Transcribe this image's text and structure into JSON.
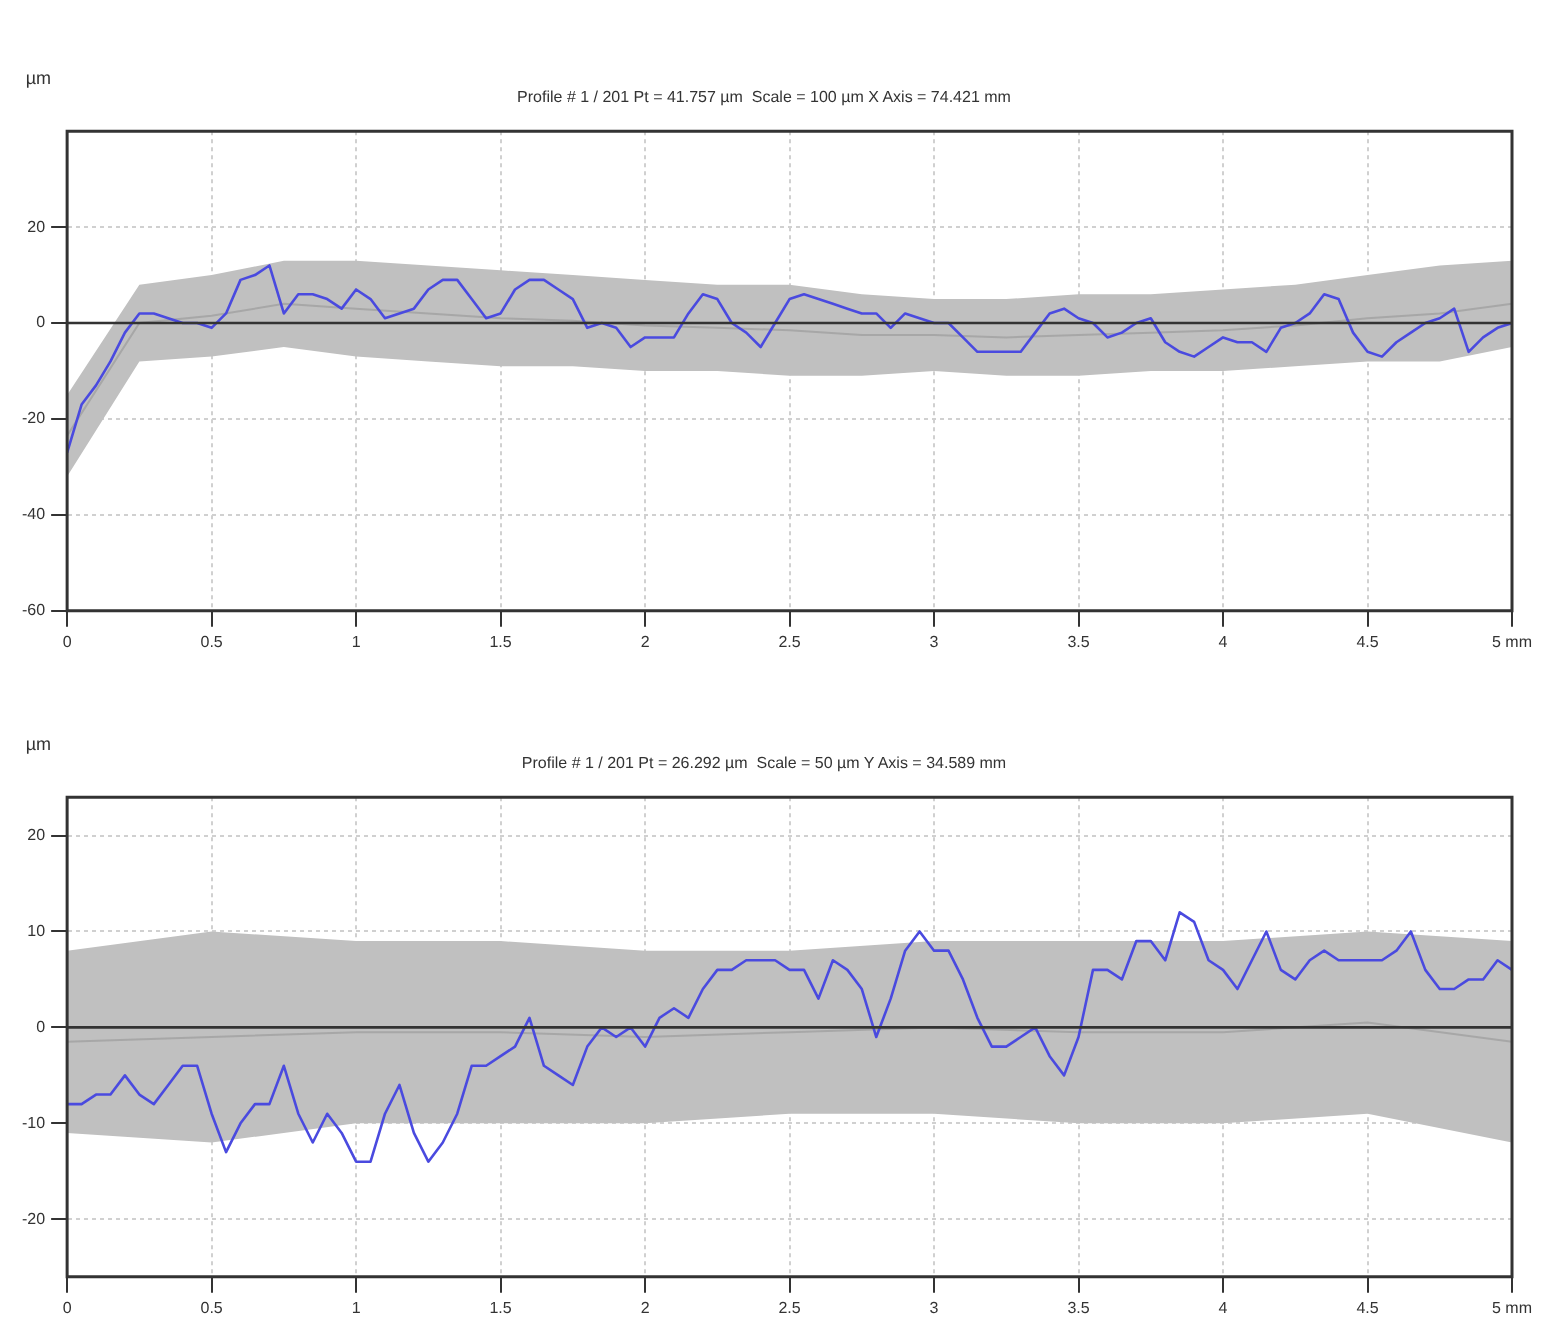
{
  "chart_data": [
    {
      "type": "line",
      "subtitle": "Profile # 1 / 201 Pt = 41.757 µm  Scale = 100 µm X Axis = 74.421 mm",
      "ylabel": "µm",
      "xlim": [
        0,
        5
      ],
      "ylim": [
        -60,
        40
      ],
      "xticks": [
        0,
        0.5,
        1,
        1.5,
        2,
        2.5,
        3,
        3.5,
        4,
        4.5,
        {
          "value": 5,
          "label": "5 mm"
        }
      ],
      "yticks": [
        -60,
        -40,
        -20,
        0,
        20
      ],
      "grid": true,
      "marker": "none",
      "line_style": "solid",
      "ref_lines": [
        {
          "axis": "y",
          "value": 0,
          "color": "#333333"
        }
      ],
      "series": [
        {
          "type": "line",
          "color": "#c0c0c0",
          "x": [
            0,
            0.25,
            0.5,
            0.75,
            1,
            1.25,
            1.5,
            1.75,
            2,
            2.25,
            2.5,
            2.75,
            3,
            3.25,
            3.5,
            3.75,
            4,
            4.25,
            4.5,
            4.75,
            5
          ],
          "values": [
            -23.5,
            0,
            1.5,
            4,
            3,
            2,
            1,
            0.5,
            -0.5,
            -1,
            -1.5,
            -2.5,
            -2.5,
            -3,
            -2.5,
            -2,
            -1.5,
            -0.5,
            1,
            2,
            4
          ],
          "lower": [
            -32,
            -8,
            -7,
            -5,
            -7,
            -8,
            -9,
            -9,
            -10,
            -10,
            -11,
            -11,
            -10,
            -11,
            -11,
            -10,
            -10,
            -9,
            -8,
            -8,
            -5
          ],
          "upper": [
            -15,
            8,
            10,
            13,
            13,
            12,
            11,
            10,
            9,
            8,
            8,
            6,
            5,
            5,
            6,
            6,
            7,
            8,
            10,
            12,
            13
          ]
        },
        {
          "color": "#4a4adf",
          "x": [
            0,
            0.05,
            0.1,
            0.15,
            0.2,
            0.25,
            0.3,
            0.35,
            0.4,
            0.45,
            0.5,
            0.55,
            0.6,
            0.65,
            0.7,
            0.75,
            0.8,
            0.85,
            0.9,
            0.95,
            1,
            1.05,
            1.1,
            1.15,
            1.2,
            1.25,
            1.3,
            1.35,
            1.4,
            1.45,
            1.5,
            1.55,
            1.6,
            1.65,
            1.7,
            1.75,
            1.8,
            1.85,
            1.9,
            1.95,
            2,
            2.05,
            2.1,
            2.15,
            2.2,
            2.25,
            2.3,
            2.35,
            2.4,
            2.45,
            2.5,
            2.55,
            2.6,
            2.65,
            2.7,
            2.75,
            2.8,
            2.85,
            2.9,
            2.95,
            3,
            3.05,
            3.1,
            3.15,
            3.2,
            3.25,
            3.3,
            3.35,
            3.4,
            3.45,
            3.5,
            3.55,
            3.6,
            3.65,
            3.7,
            3.75,
            3.8,
            3.85,
            3.9,
            3.95,
            4,
            4.05,
            4.1,
            4.15,
            4.2,
            4.25,
            4.3,
            4.35,
            4.4,
            4.45,
            4.5,
            4.55,
            4.6,
            4.65,
            4.7,
            4.75,
            4.8,
            4.85,
            4.9,
            4.95,
            5
          ],
          "values": [
            -27,
            -17,
            -13,
            -8,
            -2,
            2,
            2,
            1,
            0,
            0,
            -1,
            2,
            9,
            10,
            12,
            2,
            6,
            6,
            5,
            3,
            7,
            5,
            1,
            2,
            3,
            7,
            9,
            9,
            5,
            1,
            2,
            7,
            9,
            9,
            7,
            5,
            -1,
            0,
            -1,
            -5,
            -3,
            -3,
            -3,
            2,
            6,
            5,
            0,
            -2,
            -5,
            0,
            5,
            6,
            5,
            4,
            3,
            2,
            2,
            -1,
            2,
            1,
            0,
            0,
            -3,
            -6,
            -6,
            -6,
            -6,
            -2,
            2,
            3,
            1,
            0,
            -3,
            -2,
            0,
            1,
            -4,
            -6,
            -7,
            -5,
            -3,
            -4,
            -4,
            -6,
            -1,
            0,
            2,
            6,
            5,
            -2,
            -6,
            -7,
            -4,
            -2,
            0,
            1,
            3,
            -6,
            -3,
            -1,
            0
          ]
        }
      ]
    },
    {
      "type": "line",
      "subtitle": "Profile # 1 / 201 Pt = 26.292 µm  Scale = 50 µm Y Axis = 34.589 mm",
      "ylabel": "µm",
      "xlim": [
        0,
        5
      ],
      "ylim": [
        -26,
        24
      ],
      "xticks": [
        0,
        0.5,
        1,
        1.5,
        2,
        2.5,
        3,
        3.5,
        4,
        4.5,
        {
          "value": 5,
          "label": "5 mm"
        }
      ],
      "yticks": [
        -20,
        -10,
        0,
        10,
        20
      ],
      "grid": true,
      "marker": "none",
      "line_style": "solid",
      "ref_lines": [
        {
          "axis": "y",
          "value": 0,
          "color": "#333333"
        }
      ],
      "series": [
        {
          "type": "line",
          "color": "#c0c0c0",
          "x": [
            0,
            0.5,
            1,
            1.5,
            2,
            2.5,
            3,
            3.5,
            4,
            4.5,
            5
          ],
          "values": [
            -1.5,
            -1,
            -0.5,
            -0.5,
            -1,
            -0.5,
            0,
            -0.5,
            -0.5,
            0.5,
            -1.5
          ],
          "lower": [
            -11,
            -12,
            -10,
            -10,
            -10,
            -9,
            -9,
            -10,
            -10,
            -9,
            -12
          ],
          "upper": [
            8,
            10,
            9,
            9,
            8,
            8,
            9,
            9,
            9,
            10,
            9
          ]
        },
        {
          "color": "#4a4adf",
          "x": [
            0,
            0.05,
            0.1,
            0.15,
            0.2,
            0.25,
            0.3,
            0.35,
            0.4,
            0.45,
            0.5,
            0.55,
            0.6,
            0.65,
            0.7,
            0.75,
            0.8,
            0.85,
            0.9,
            0.95,
            1,
            1.05,
            1.1,
            1.15,
            1.2,
            1.25,
            1.3,
            1.35,
            1.4,
            1.45,
            1.5,
            1.55,
            1.6,
            1.65,
            1.7,
            1.75,
            1.8,
            1.85,
            1.9,
            1.95,
            2,
            2.05,
            2.1,
            2.15,
            2.2,
            2.25,
            2.3,
            2.35,
            2.4,
            2.45,
            2.5,
            2.55,
            2.6,
            2.65,
            2.7,
            2.75,
            2.8,
            2.85,
            2.9,
            2.95,
            3,
            3.05,
            3.1,
            3.15,
            3.2,
            3.25,
            3.3,
            3.35,
            3.4,
            3.45,
            3.5,
            3.55,
            3.6,
            3.65,
            3.7,
            3.75,
            3.8,
            3.85,
            3.9,
            3.95,
            4,
            4.05,
            4.1,
            4.15,
            4.2,
            4.25,
            4.3,
            4.35,
            4.4,
            4.45,
            4.5,
            4.55,
            4.6,
            4.65,
            4.7,
            4.75,
            4.8,
            4.85,
            4.9,
            4.95,
            5
          ],
          "values": [
            -8,
            -8,
            -7,
            -7,
            -5,
            -7,
            -8,
            -6,
            -4,
            -4,
            -9,
            -13,
            -10,
            -8,
            -8,
            -4,
            -9,
            -12,
            -9,
            -11,
            -14,
            -14,
            -9,
            -6,
            -11,
            -14,
            -12,
            -9,
            -4,
            -4,
            -3,
            -2,
            1,
            -4,
            -5,
            -6,
            -2,
            0,
            -1,
            0,
            -2,
            1,
            2,
            1,
            4,
            6,
            6,
            7,
            7,
            7,
            6,
            6,
            3,
            7,
            6,
            4,
            -1,
            3,
            8,
            10,
            8,
            8,
            5,
            1,
            -2,
            -2,
            -1,
            0,
            -3,
            -5,
            -1,
            6,
            6,
            5,
            9,
            9,
            7,
            12,
            11,
            7,
            6,
            4,
            7,
            10,
            6,
            5,
            7,
            8,
            7,
            7,
            7,
            7,
            8,
            10,
            6,
            4,
            4,
            5,
            5,
            7,
            6
          ]
        }
      ]
    }
  ]
}
